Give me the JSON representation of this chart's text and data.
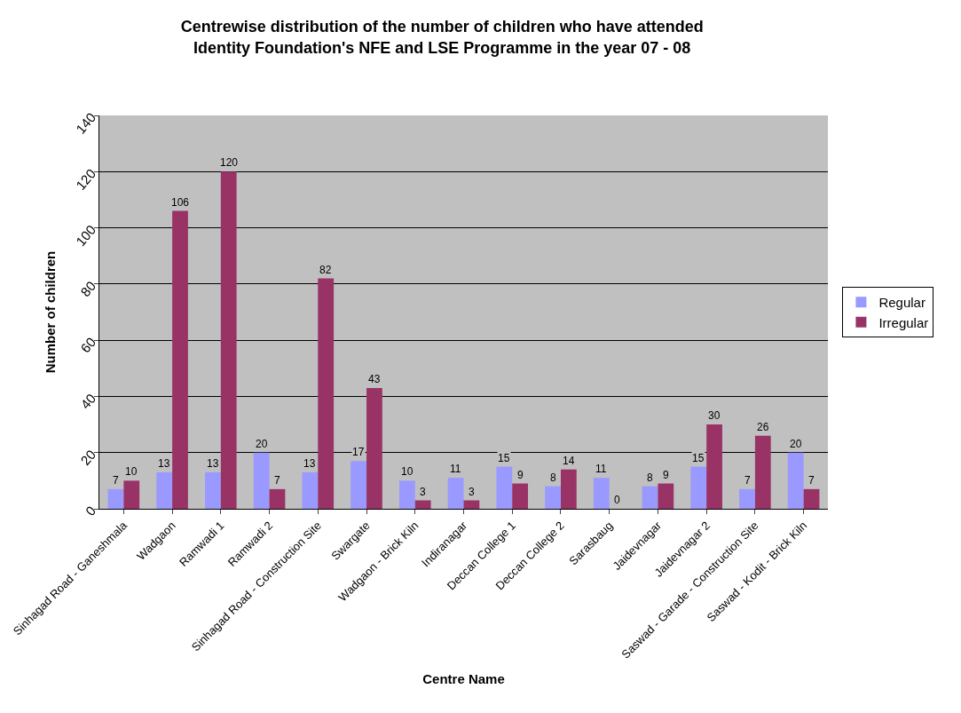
{
  "chart_data": {
    "type": "bar",
    "title": "Centrewise distribution of the number of children who have attended Identity Foundation's NFE and LSE Programme in the year 07 - 08",
    "xlabel": "Centre Name",
    "ylabel": "Number of children",
    "categories": [
      "Sinhagad Road - Ganeshmala",
      "Wadgaon",
      "Ramwadi 1",
      "Ramwadi 2",
      "Sinhagad Road - Construction Site",
      "Swargate",
      "Wadgaon - Brick Kiln",
      "Indiranagar",
      "Deccan College 1",
      "Deccan College 2",
      "Sarasbaug",
      "Jaidevnagar",
      "Jaidevnagar 2",
      "Saswad - Garade - Construction Site",
      "Saswad - Kodit - Brick Kiln"
    ],
    "series": [
      {
        "name": "Regular",
        "color": "#9999ff",
        "values": [
          7,
          13,
          13,
          20,
          13,
          17,
          10,
          11,
          15,
          8,
          11,
          8,
          15,
          7,
          20
        ]
      },
      {
        "name": "Irregular",
        "color": "#993366",
        "values": [
          10,
          106,
          120,
          7,
          82,
          43,
          3,
          3,
          9,
          14,
          0,
          9,
          30,
          26,
          7
        ]
      }
    ],
    "ylim": [
      0,
      140
    ],
    "yticks": [
      0,
      20,
      40,
      60,
      80,
      100,
      120,
      140
    ],
    "grid": "y",
    "legend": "right",
    "data_labels": true
  }
}
